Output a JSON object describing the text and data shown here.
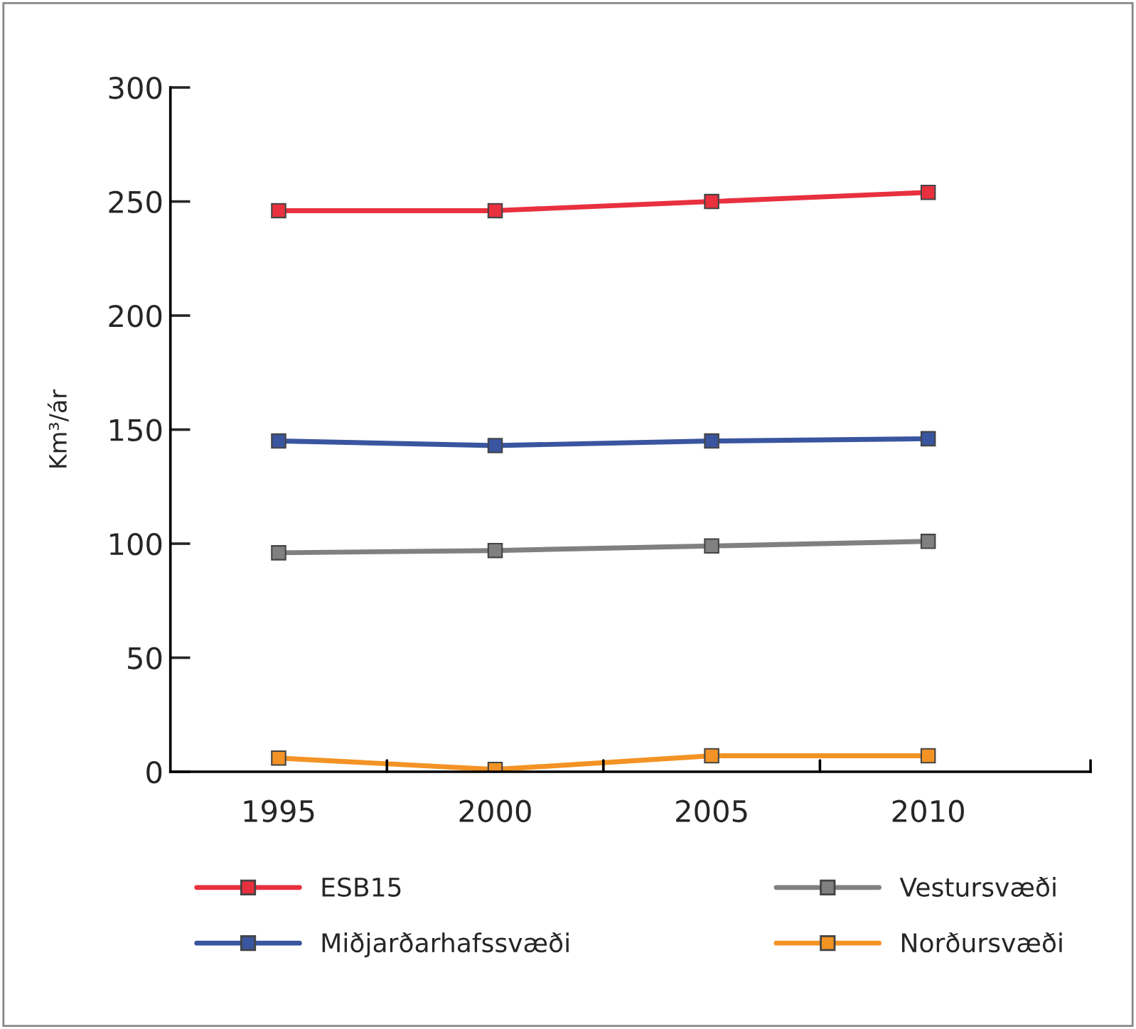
{
  "chart_data": {
    "type": "line",
    "ylabel": "Km³/ár",
    "categories": [
      "1995",
      "2000",
      "2005",
      "2010"
    ],
    "series": [
      {
        "name": "ESB15",
        "color": "#e8303f",
        "values": [
          246,
          246,
          250,
          254
        ]
      },
      {
        "name": "Miðjarðarhafssvæði",
        "color": "#3a559f",
        "values": [
          145,
          143,
          145,
          146
        ]
      },
      {
        "name": "Vestursvæði",
        "color": "#808080",
        "values": [
          96,
          97,
          99,
          101
        ]
      },
      {
        "name": "Norðursvæði",
        "color": "#f39325",
        "values": [
          6,
          1,
          7,
          7
        ]
      }
    ],
    "ylim": [
      0,
      300
    ],
    "yticks": [
      0,
      50,
      100,
      150,
      200,
      250,
      300
    ],
    "marker": "square",
    "line_style": "solid",
    "grid": false,
    "legend": "bottom"
  }
}
